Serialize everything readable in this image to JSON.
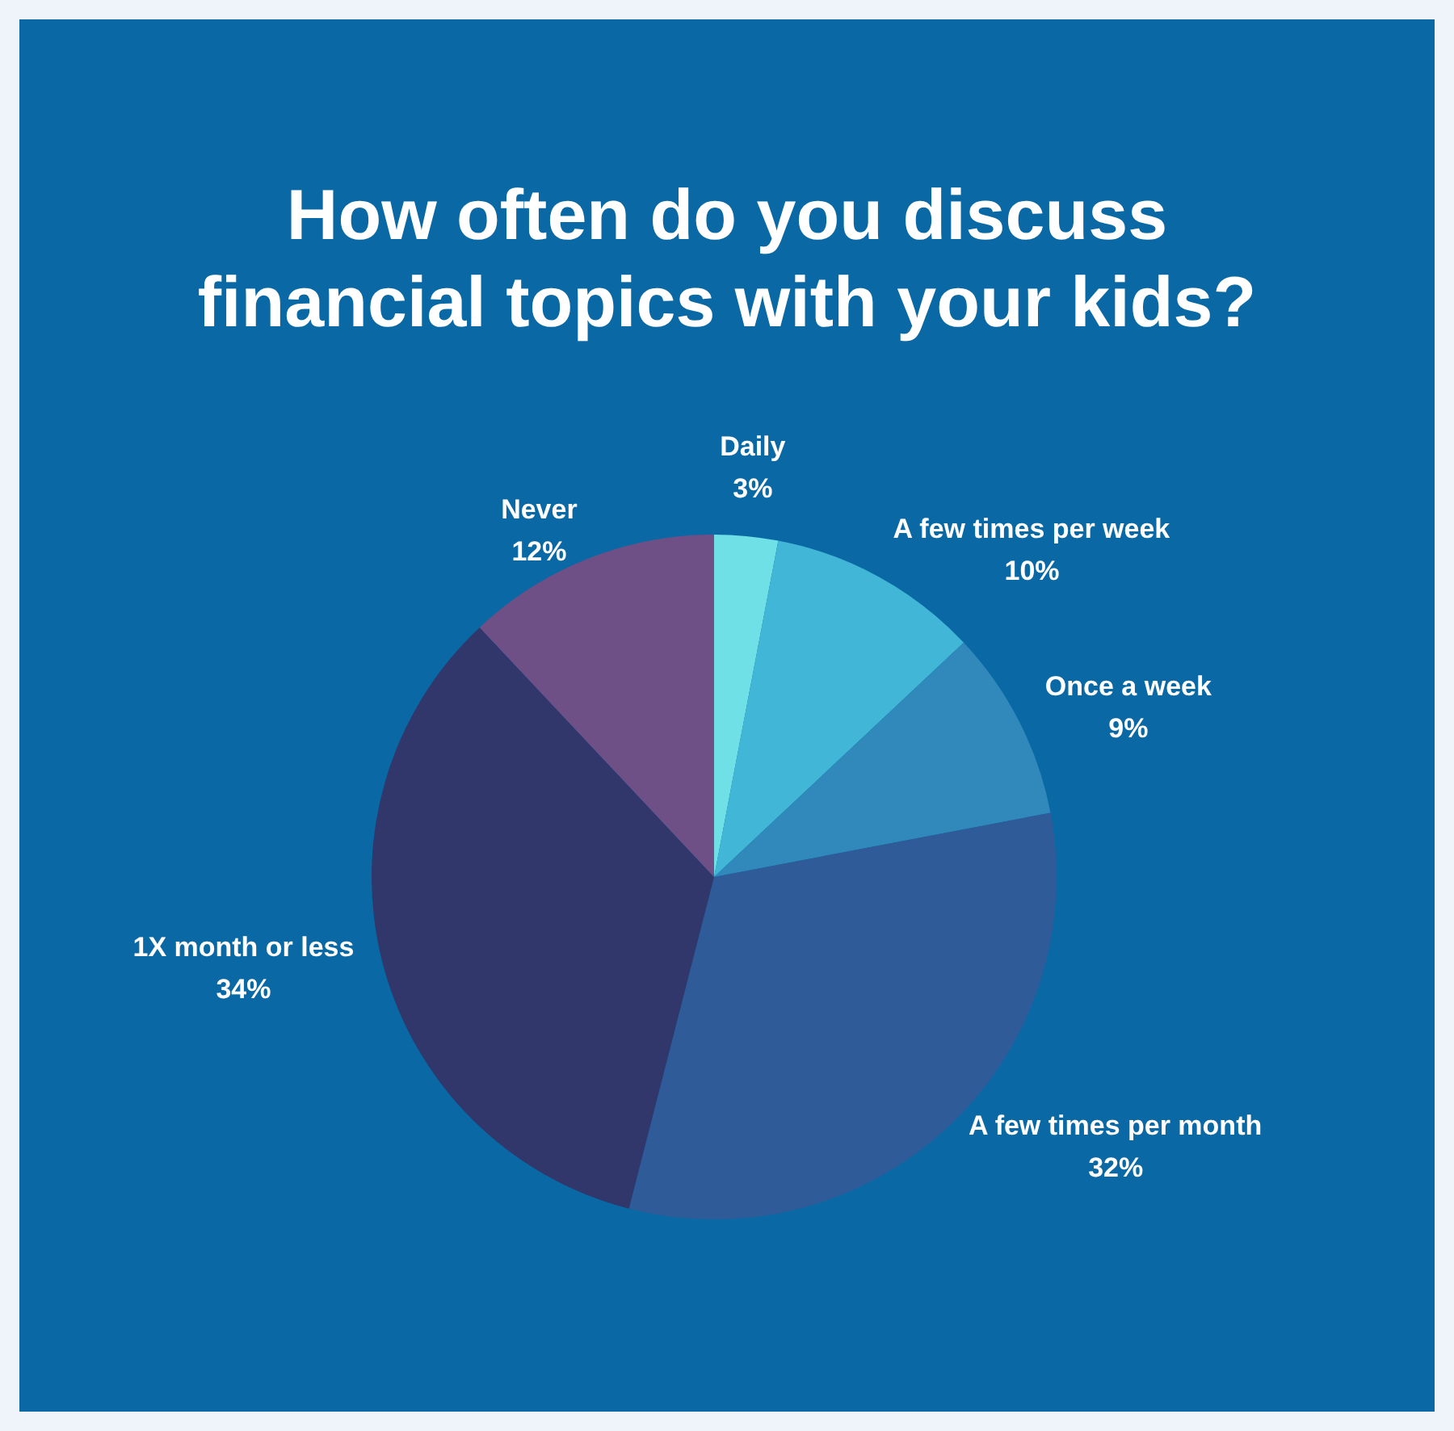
{
  "chart_data": {
    "type": "pie",
    "title": "How often do you discuss financial topics with your kids?",
    "categories": [
      "Daily",
      "A few times per week",
      "Once a week",
      "A few times per month",
      "1X month or less",
      "Never"
    ],
    "values": [
      3,
      10,
      9,
      32,
      34,
      12
    ],
    "value_labels": [
      "3%",
      "10%",
      "9%",
      "32%",
      "34%",
      "12%"
    ],
    "colors": [
      "#6fe0e6",
      "#41b6d6",
      "#3189bb",
      "#2f5c98",
      "#31366b",
      "#6e5086"
    ]
  }
}
